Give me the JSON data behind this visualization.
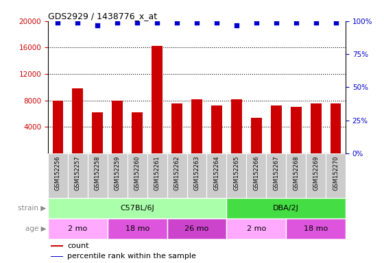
{
  "title": "GDS2929 / 1438776_x_at",
  "samples": [
    "GSM152256",
    "GSM152257",
    "GSM152258",
    "GSM152259",
    "GSM152260",
    "GSM152261",
    "GSM152262",
    "GSM152263",
    "GSM152264",
    "GSM152265",
    "GSM152266",
    "GSM152267",
    "GSM152268",
    "GSM152269",
    "GSM152270"
  ],
  "counts": [
    8000,
    9800,
    6200,
    8000,
    6200,
    16200,
    7600,
    8200,
    7200,
    8200,
    5400,
    7200,
    7000,
    7600,
    7600
  ],
  "percentile_ranks": [
    99,
    99,
    97,
    99,
    99,
    99,
    99,
    99,
    99,
    97,
    99,
    99,
    99,
    99,
    99
  ],
  "bar_color": "#cc0000",
  "dot_color": "#0000cc",
  "ylim_left": [
    0,
    20000
  ],
  "ylim_right": [
    0,
    100
  ],
  "yticks_left": [
    4000,
    8000,
    12000,
    16000,
    20000
  ],
  "yticks_right": [
    0,
    25,
    50,
    75,
    100
  ],
  "strain_groups": [
    {
      "label": "C57BL/6J",
      "start": 0,
      "end": 9,
      "color": "#aaffaa"
    },
    {
      "label": "DBA/2J",
      "start": 9,
      "end": 15,
      "color": "#44dd44"
    }
  ],
  "age_groups": [
    {
      "label": "2 mo",
      "start": 0,
      "end": 3,
      "color": "#ffaaff"
    },
    {
      "label": "18 mo",
      "start": 3,
      "end": 6,
      "color": "#dd55dd"
    },
    {
      "label": "26 mo",
      "start": 6,
      "end": 9,
      "color": "#cc44cc"
    },
    {
      "label": "2 mo",
      "start": 9,
      "end": 12,
      "color": "#ffaaff"
    },
    {
      "label": "18 mo",
      "start": 12,
      "end": 15,
      "color": "#dd55dd"
    }
  ],
  "strain_label": "strain",
  "age_label": "age",
  "legend_count_label": "count",
  "legend_percentile_label": "percentile rank within the sample",
  "tick_label_color_left": "#cc0000",
  "tick_label_color_right": "#0000cc",
  "xticklabel_bg": "#cccccc",
  "label_color": "#888888"
}
